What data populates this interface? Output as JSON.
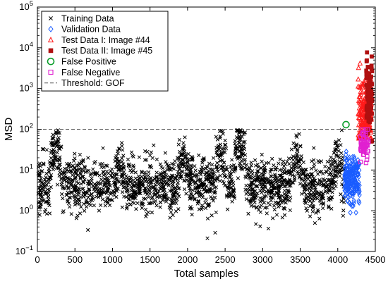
{
  "chart_data": {
    "type": "scatter",
    "xlabel": "Total samples",
    "ylabel": "MSD",
    "xlim": [
      0,
      4500
    ],
    "ylim": [
      0.1,
      100000
    ],
    "yscale": "log",
    "x_ticks": [
      0,
      500,
      1000,
      1500,
      2000,
      2500,
      3000,
      3500,
      4000,
      4500
    ],
    "y_ticks": [
      {
        "value": 0.1,
        "base": "10",
        "exp": "−1"
      },
      {
        "value": 1,
        "base": "10",
        "exp": "0"
      },
      {
        "value": 10,
        "base": "10",
        "exp": "1"
      },
      {
        "value": 100,
        "base": "10",
        "exp": "2"
      },
      {
        "value": 1000,
        "base": "10",
        "exp": "3"
      },
      {
        "value": 10000,
        "base": "10",
        "exp": "4"
      },
      {
        "value": 100000,
        "base": "10",
        "exp": "5"
      }
    ],
    "threshold": {
      "name": "Threshold: GOF",
      "value": 100,
      "color": "#555555"
    },
    "legend_position": "top-left",
    "series": [
      {
        "name": "Training Data",
        "marker": "x",
        "color": "#000000",
        "x_range": [
          10,
          4090
        ],
        "count": 2000,
        "approx_median": 4,
        "approx_range": [
          0.2,
          95
        ],
        "bursts": [
          [
            250,
            40
          ],
          [
            1100,
            14
          ],
          [
            1950,
            20
          ],
          [
            2450,
            28
          ],
          [
            2700,
            55
          ],
          [
            3450,
            20
          ],
          [
            4000,
            22
          ]
        ]
      },
      {
        "name": "Validation Data",
        "marker": "diamond",
        "color": "#1a5cff",
        "x_range": [
          4090,
          4290
        ],
        "count": 200,
        "approx_median": 6,
        "approx_range": [
          0.9,
          60
        ]
      },
      {
        "name": "Test Data I: Image #44",
        "marker": "triangle",
        "color": "#ff1a1a",
        "x_range": [
          4270,
          4450
        ],
        "count": 200,
        "approx_median": 250,
        "approx_range": [
          60,
          5000
        ]
      },
      {
        "name": "Test Data II: Image #45",
        "marker": "square-filled",
        "color": "#b01010",
        "x_range": [
          4380,
          4460
        ],
        "count": 90,
        "approx_median": 600,
        "approx_range": [
          50,
          23000
        ]
      },
      {
        "name": "False Positive",
        "marker": "circle",
        "color": "#0a9e2a",
        "points": [
          [
            4110,
            130
          ]
        ]
      },
      {
        "name": "False Negative",
        "marker": "square-open",
        "color": "#e020d0",
        "x_range": [
          4300,
          4410
        ],
        "count": 60,
        "approx_median": 45,
        "approx_range": [
          15,
          99
        ]
      }
    ]
  }
}
